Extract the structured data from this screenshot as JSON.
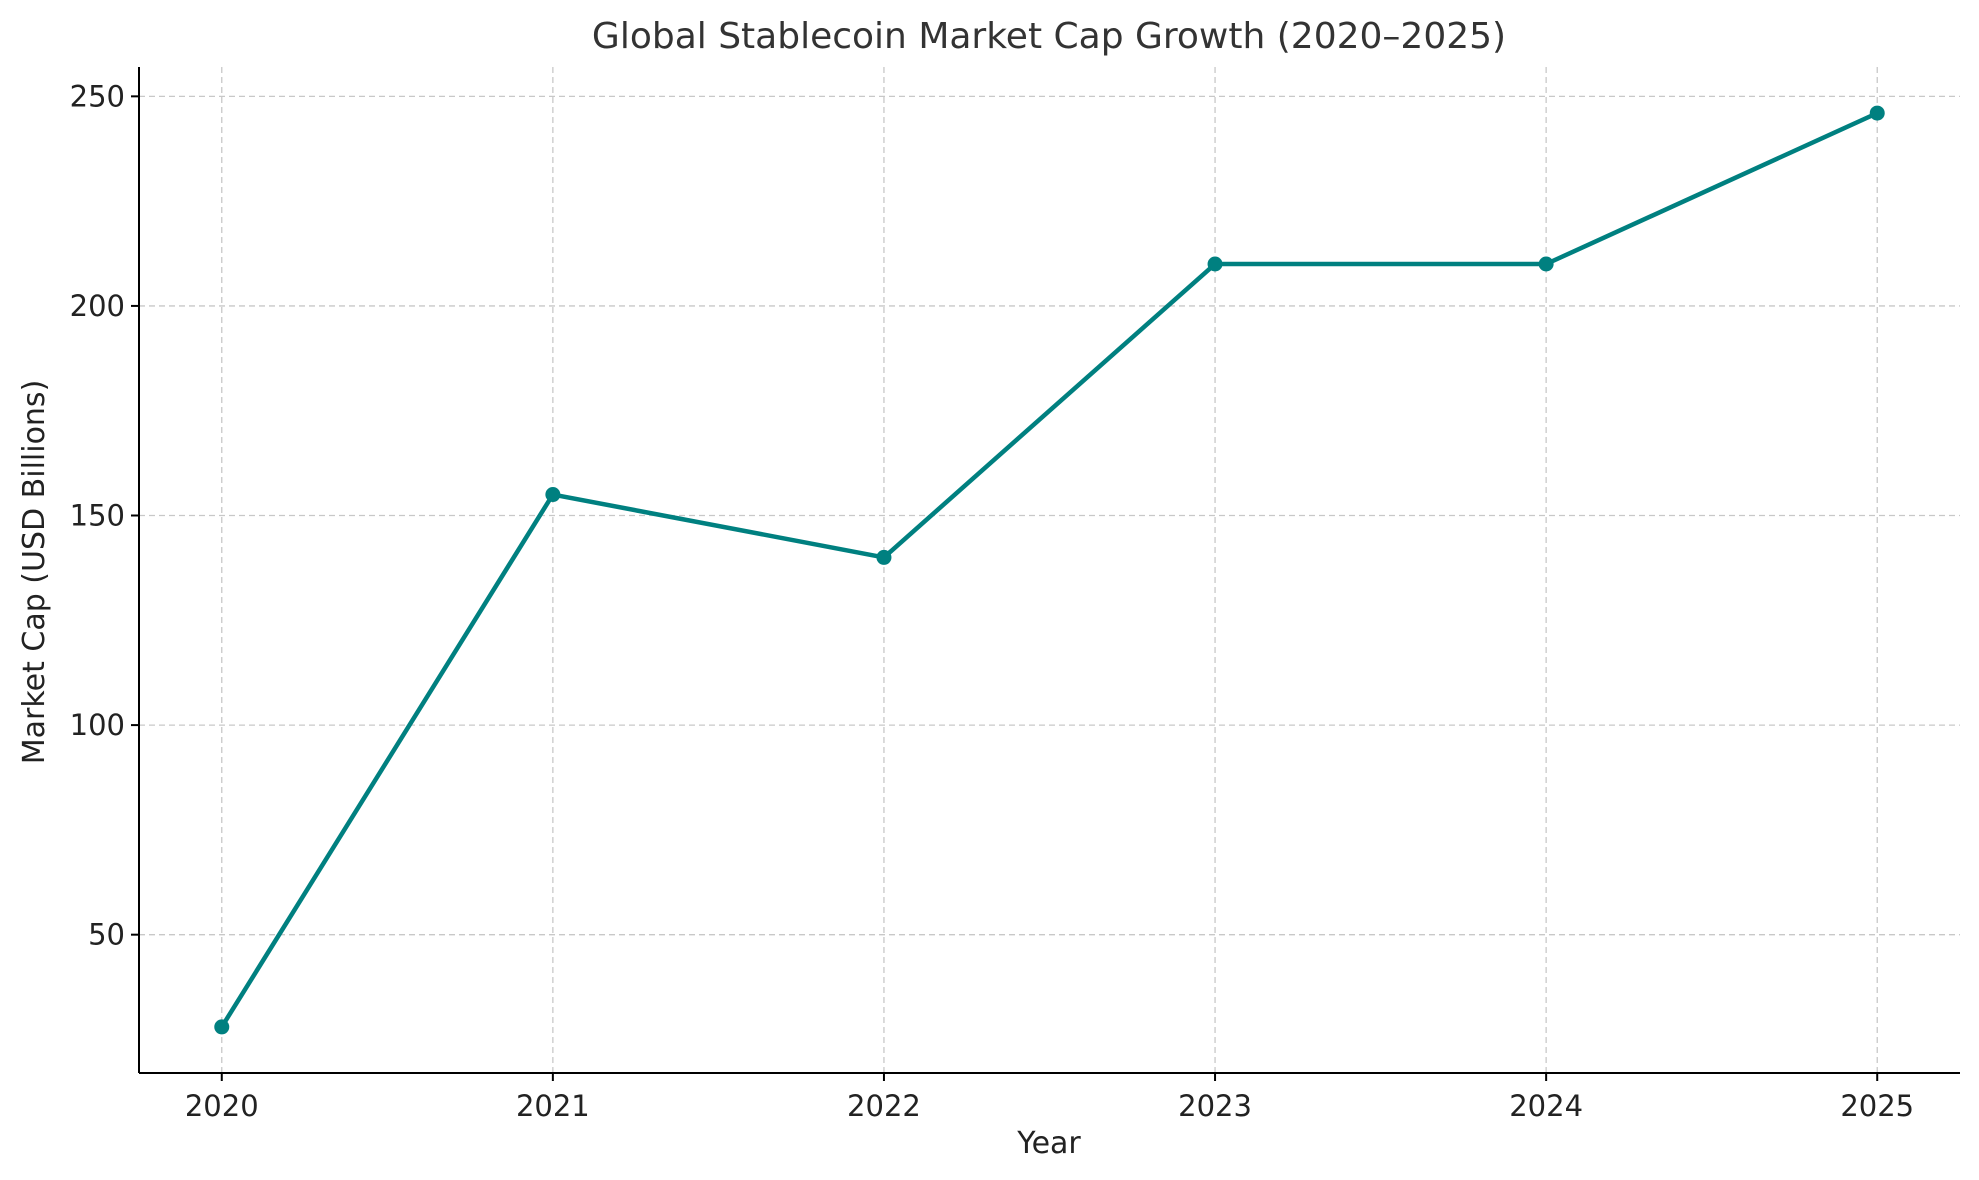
{
  "chart_data": {
    "type": "line",
    "title": "Global Stablecoin Market Cap Growth (2020–2025)",
    "xlabel": "Year",
    "ylabel": "Market Cap (USD Billions)",
    "x": [
      2020,
      2021,
      2022,
      2023,
      2024,
      2025
    ],
    "x_tick_labels": [
      "2020",
      "2021",
      "2022",
      "2023",
      "2024",
      "2025"
    ],
    "y_ticks": [
      50,
      100,
      150,
      200,
      250
    ],
    "y_tick_labels": [
      "50",
      "100",
      "150",
      "200",
      "250"
    ],
    "xlim": [
      2019.75,
      2025.25
    ],
    "ylim": [
      17,
      257
    ],
    "grid": true,
    "series": [
      {
        "name": "",
        "color": "#008080",
        "values": [
          28,
          155,
          140,
          210,
          210,
          246
        ]
      }
    ]
  }
}
